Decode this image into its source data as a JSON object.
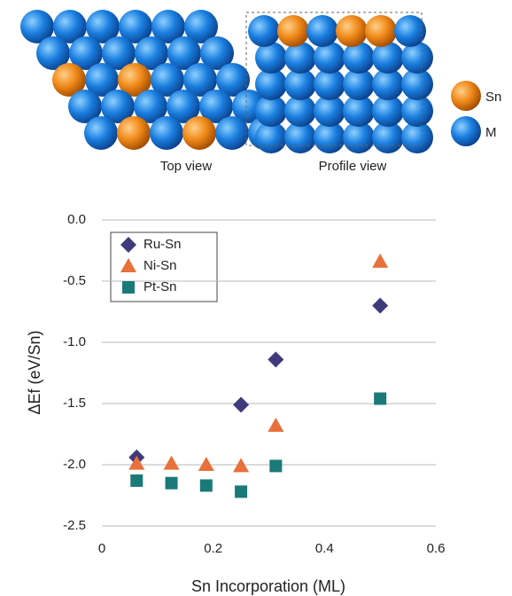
{
  "figure": {
    "top_view_label": "Top view",
    "profile_view_label": "Profile view",
    "legend": [
      "Sn",
      "M"
    ]
  },
  "chart_data": {
    "type": "scatter",
    "xlabel": "Sn Incorporation (ML)",
    "ylabel": "ΔEf (eV/Sn)",
    "xlim": [
      0,
      0.6
    ],
    "xticks": [
      0,
      0.2,
      0.4,
      0.6
    ],
    "ylim": [
      -2.5,
      0
    ],
    "yticks": [
      {
        "value": 0,
        "label": "0.0"
      },
      -0.5,
      {
        "value": -1,
        "label": "-1.0"
      },
      -1.5,
      {
        "value": -2,
        "label": "-2.0"
      },
      -2.5
    ],
    "grid": true,
    "legend_position": "upper-left",
    "series": [
      {
        "name": "Ru-Sn",
        "color": "#3f3a7a",
        "marker": "diamond",
        "x": [
          0.0625,
          0.25,
          0.3125,
          0.5
        ],
        "values": [
          -1.94,
          -1.51,
          -1.14,
          -0.7
        ]
      },
      {
        "name": "Ni-Sn",
        "color": "#e8703a",
        "marker": "triangle",
        "x": [
          0.0625,
          0.125,
          0.1875,
          0.25,
          0.3125,
          0.5
        ],
        "values": [
          -1.99,
          -1.99,
          -2.0,
          -2.01,
          -1.68,
          -0.34
        ]
      },
      {
        "name": "Pt-Sn",
        "color": "#1a7a78",
        "marker": "square",
        "x": [
          0.0625,
          0.125,
          0.1875,
          0.25,
          0.3125,
          0.5
        ],
        "values": [
          -2.13,
          -2.15,
          -2.17,
          -2.22,
          -2.01,
          -1.46
        ]
      }
    ]
  }
}
